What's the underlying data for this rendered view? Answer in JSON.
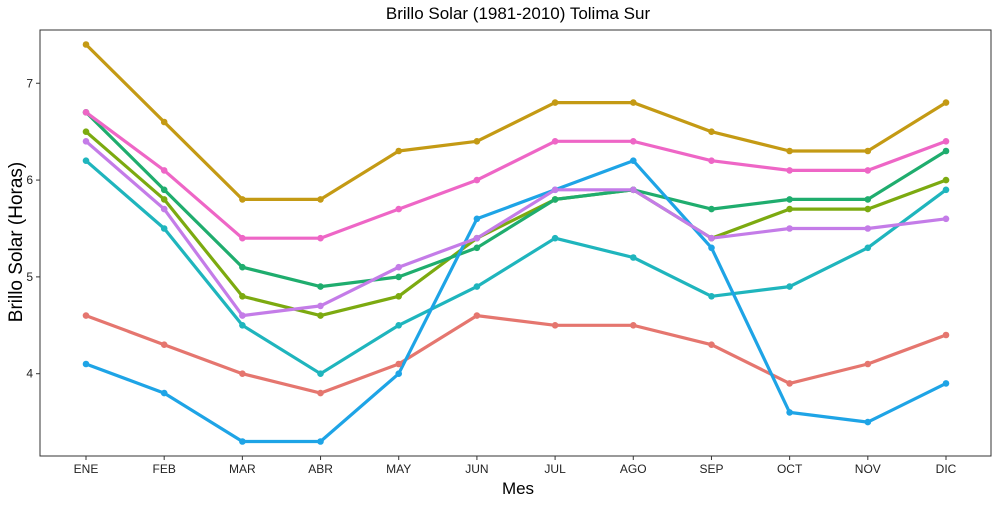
{
  "chart_data": {
    "type": "line",
    "title": "Brillo Solar (1981-2010)  Tolima Sur",
    "xlabel": "Mes",
    "ylabel": "Brillo Solar (Horas)",
    "categories": [
      "ENE",
      "FEB",
      "MAR",
      "ABR",
      "MAY",
      "JUN",
      "JUL",
      "AGO",
      "SEP",
      "OCT",
      "NOV",
      "DIC"
    ],
    "ylim": [
      3.15,
      7.55
    ],
    "yticks": [
      4,
      5,
      6,
      7
    ],
    "grid": false,
    "legend": "none",
    "series": [
      {
        "color": "#e5766f",
        "values": [
          4.6,
          4.3,
          4.0,
          3.8,
          4.1,
          4.6,
          4.5,
          4.5,
          4.3,
          3.9,
          4.1,
          4.4
        ]
      },
      {
        "color": "#c49a14",
        "values": [
          7.4,
          6.6,
          5.8,
          5.8,
          6.3,
          6.4,
          6.8,
          6.8,
          6.5,
          6.3,
          6.3,
          6.8
        ]
      },
      {
        "color": "#7caa10",
        "values": [
          6.5,
          5.8,
          4.8,
          4.6,
          4.8,
          5.4,
          5.8,
          5.9,
          5.4,
          5.7,
          5.7,
          6.0
        ]
      },
      {
        "color": "#1fad6e",
        "values": [
          6.7,
          5.9,
          5.1,
          4.9,
          5.0,
          5.3,
          5.8,
          5.9,
          5.7,
          5.8,
          5.8,
          6.3
        ]
      },
      {
        "color": "#1fb5bd",
        "values": [
          6.2,
          5.5,
          4.5,
          4.0,
          4.5,
          4.9,
          5.4,
          5.2,
          4.8,
          4.9,
          5.3,
          5.9
        ]
      },
      {
        "color": "#1ea4e6",
        "values": [
          4.1,
          3.8,
          3.3,
          3.3,
          4.0,
          5.6,
          5.9,
          6.2,
          5.3,
          3.6,
          3.5,
          3.9
        ]
      },
      {
        "color": "#c47ce8",
        "values": [
          6.4,
          5.7,
          4.6,
          4.7,
          5.1,
          5.4,
          5.9,
          5.9,
          5.4,
          5.5,
          5.5,
          5.6
        ]
      },
      {
        "color": "#ee66c6",
        "values": [
          6.7,
          6.1,
          5.4,
          5.4,
          5.7,
          6.0,
          6.4,
          6.4,
          6.2,
          6.1,
          6.1,
          6.4
        ]
      }
    ]
  }
}
